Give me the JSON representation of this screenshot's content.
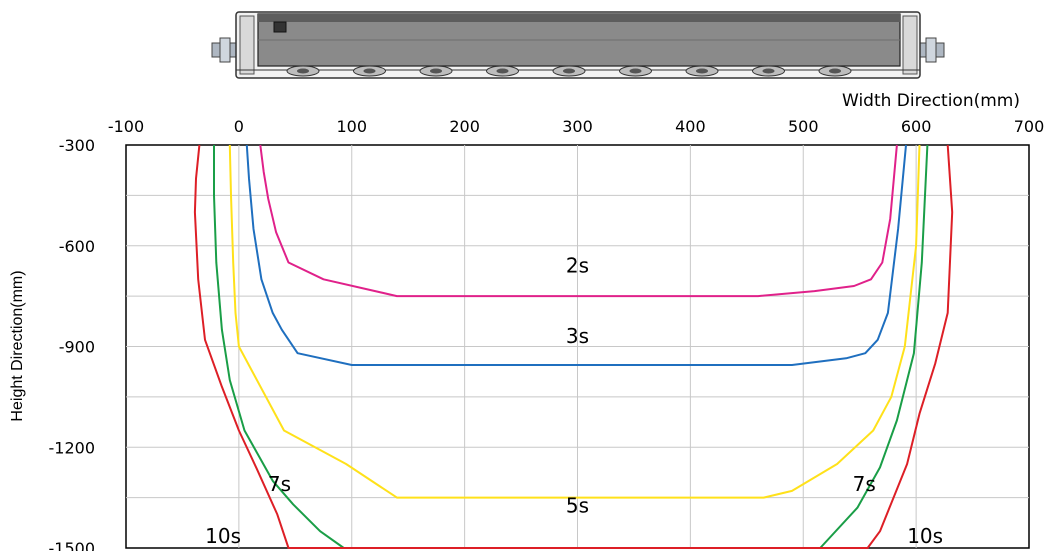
{
  "chart_data": {
    "type": "line",
    "title": "",
    "xlabel": "Width Direction(mm)",
    "ylabel": "Height Direction(mm)",
    "xlim": [
      -100,
      700
    ],
    "ylim": [
      -1500,
      -300
    ],
    "x_ticks": [
      "-100",
      "0",
      "100",
      "200",
      "300",
      "400",
      "500",
      "600",
      "700"
    ],
    "y_ticks": [
      "-300",
      "-600",
      "-900",
      "-1200",
      "-1500"
    ],
    "grid": true,
    "series": [
      {
        "name": "2s",
        "color": "#e0218a",
        "x": [
          19,
          22,
          26,
          33,
          44,
          75,
          140,
          300,
          460,
          510,
          545,
          560,
          570,
          577,
          583
        ],
        "y": [
          -300,
          -380,
          -460,
          -560,
          -650,
          -700,
          -750,
          -750,
          -750,
          -735,
          -720,
          -700,
          -650,
          -520,
          -300
        ]
      },
      {
        "name": "3s",
        "color": "#1f6fbf",
        "x": [
          7,
          9,
          13,
          20,
          30,
          38,
          52,
          100,
          300,
          490,
          538,
          555,
          566,
          575,
          584,
          591
        ],
        "y": [
          -300,
          -400,
          -550,
          -700,
          -800,
          -850,
          -920,
          -955,
          -955,
          -955,
          -935,
          -920,
          -880,
          -800,
          -550,
          -300
        ]
      },
      {
        "name": "5s",
        "color": "#ffe11a",
        "x": [
          -8,
          -7,
          -5,
          -3,
          0,
          40,
          95,
          140,
          300,
          465,
          490,
          530,
          562,
          578,
          590,
          600,
          603
        ],
        "y": [
          -300,
          -450,
          -650,
          -800,
          -900,
          -1150,
          -1250,
          -1350,
          -1350,
          -1350,
          -1330,
          -1250,
          -1150,
          -1050,
          -900,
          -600,
          -300
        ]
      },
      {
        "name": "7s",
        "color": "#1a9e47",
        "x": [
          -22,
          -22,
          -20,
          -15,
          -8,
          5,
          30,
          48,
          72,
          93,
          515,
          548,
          568,
          583,
          598,
          605,
          610
        ],
        "y": [
          -300,
          -450,
          -650,
          -850,
          -1000,
          -1150,
          -1300,
          -1370,
          -1450,
          -1500,
          -1500,
          -1380,
          -1260,
          -1120,
          -920,
          -650,
          -300
        ]
      },
      {
        "name": "10s",
        "color": "#dd1f26",
        "x": [
          -35,
          -38,
          -39,
          -36,
          -30,
          -15,
          0,
          16,
          34,
          44,
          557,
          568,
          592,
          603,
          617,
          628,
          632,
          628
        ],
        "y": [
          -300,
          -400,
          -500,
          -700,
          -880,
          -1020,
          -1150,
          -1265,
          -1400,
          -1500,
          -1500,
          -1450,
          -1250,
          -1100,
          -950,
          -800,
          -500,
          -300
        ]
      }
    ],
    "labels": [
      {
        "text": "2s",
        "x": 300,
        "y": -680
      },
      {
        "text": "3s",
        "x": 300,
        "y": -890
      },
      {
        "text": "5s",
        "x": 300,
        "y": -1395
      },
      {
        "text": "7s",
        "x": 36,
        "y": -1330
      },
      {
        "text": "7s",
        "x": 554,
        "y": -1330
      },
      {
        "text": "10s",
        "x": -14,
        "y": -1485
      },
      {
        "text": "10s",
        "x": 608,
        "y": -1485
      }
    ]
  }
}
